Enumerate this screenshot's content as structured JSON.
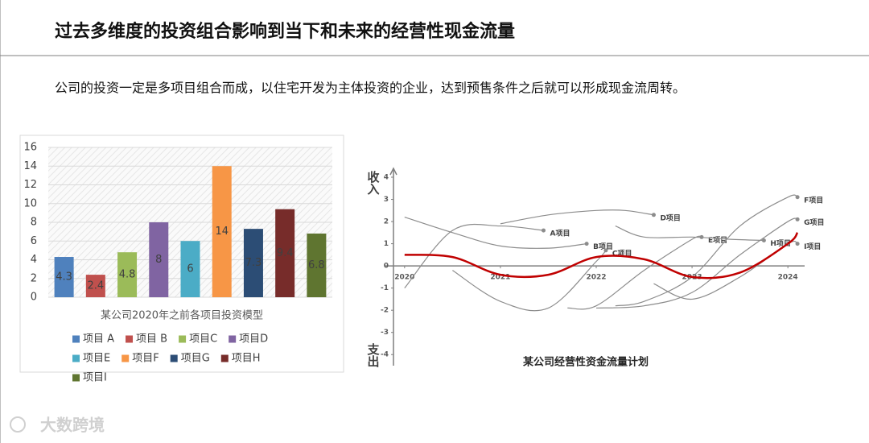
{
  "header": {
    "title": "过去多维度的投资组合影响到当下和未来的经营性现金流量",
    "text": "公司的投资一定是多项目组合而成，以住宅开发为主体投资的企业，达到预售条件之后就可以形成现金流周转。",
    "watermark": "大数跨境"
  },
  "chart_data": [
    {
      "type": "bar",
      "title": "某公司2020年之前各项目投资模型",
      "categories": [
        "项目 A",
        "项目 B",
        "项目C",
        "项目D",
        "项目E",
        "项目F",
        "项目G",
        "项目H",
        "项目I"
      ],
      "values": [
        4.3,
        2.4,
        4.8,
        8,
        6,
        14,
        7.3,
        9.4,
        6.8
      ],
      "colors": [
        "#4f81bd",
        "#c0504d",
        "#9bbb59",
        "#8064a2",
        "#4bacc6",
        "#f79646",
        "#2c4d75",
        "#772c2a",
        "#5f7530"
      ],
      "ylim": [
        0,
        16
      ],
      "yticks": [
        0,
        2,
        4,
        6,
        8,
        10,
        12,
        14,
        16
      ],
      "grid": true,
      "legend": "bottom"
    },
    {
      "type": "line",
      "title": "某公司经营性资金流量计划",
      "ylabel_top": "收入",
      "ylabel_bottom": "支出",
      "xlim": [
        2019.8,
        2024.2
      ],
      "ylim": [
        -4.5,
        4.4
      ],
      "xticks": [
        2020,
        2021,
        2022,
        2023,
        2024
      ],
      "yticks": [
        -4,
        -3,
        -2,
        -1,
        0,
        1,
        2,
        3,
        4
      ],
      "series": [
        {
          "name": "A项目",
          "color": "#8c8c8c",
          "x": [
            2020,
            2020.5,
            2021,
            2021.45
          ],
          "values": [
            -1.0,
            1.6,
            1.8,
            1.6
          ]
        },
        {
          "name": "B项目",
          "color": "#8c8c8c",
          "x": [
            2020,
            2020.5,
            2021,
            2021.5,
            2021.9
          ],
          "values": [
            2.2,
            1.5,
            0.9,
            0.8,
            1.0
          ]
        },
        {
          "name": "C项目",
          "color": "#8c8c8c",
          "x": [
            2020.5,
            2021,
            2021.5,
            2022,
            2022.1
          ],
          "values": [
            -0.2,
            -1.6,
            -1.9,
            0.2,
            0.7
          ]
        },
        {
          "name": "D项目",
          "color": "#8c8c8c",
          "x": [
            2021,
            2021.5,
            2022,
            2022.3,
            2022.6
          ],
          "values": [
            1.9,
            2.3,
            2.5,
            2.5,
            2.3
          ]
        },
        {
          "name": "E项目",
          "color": "#8c8c8c",
          "x": [
            2021.7,
            2022,
            2022.5,
            2023,
            2023.1
          ],
          "values": [
            -1.9,
            -1.8,
            -0.2,
            1.2,
            1.3
          ]
        },
        {
          "name": "F项目",
          "color": "#8c8c8c",
          "x": [
            2022.2,
            2022.5,
            2023,
            2023.5,
            2024,
            2024.1
          ],
          "values": [
            -1.8,
            -1.6,
            -0.5,
            1.8,
            3.1,
            3.1
          ]
        },
        {
          "name": "G项目",
          "color": "#8c8c8c",
          "x": [
            2022,
            2022.5,
            2023,
            2023.5,
            2024,
            2024.1
          ],
          "values": [
            -1.9,
            -1.8,
            -1.2,
            0.5,
            2.0,
            2.1
          ]
        },
        {
          "name": "H项目",
          "color": "#8c8c8c",
          "x": [
            2022.2,
            2022.5,
            2023,
            2023.4,
            2023.75
          ],
          "values": [
            1.8,
            1.3,
            1.3,
            1.2,
            1.15
          ]
        },
        {
          "name": "I项目",
          "color": "#8c8c8c",
          "x": [
            2022.6,
            2023,
            2023.5,
            2024,
            2024.1
          ],
          "values": [
            -0.8,
            -1.5,
            -0.5,
            1.0,
            1.0
          ]
        },
        {
          "color": "#c00000",
          "x": [
            2020,
            2020.5,
            2021,
            2021.5,
            2022,
            2022.5,
            2023,
            2023.5,
            2024,
            2024.1
          ],
          "values": [
            0.5,
            0.4,
            -0.4,
            -0.4,
            0.4,
            0.3,
            -0.5,
            -0.3,
            1.0,
            1.5
          ]
        }
      ]
    }
  ]
}
